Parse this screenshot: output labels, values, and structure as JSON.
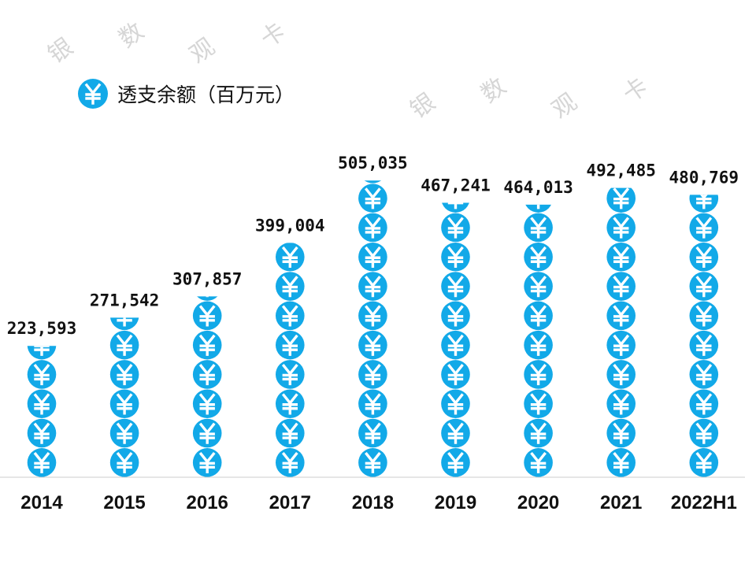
{
  "chart_data": {
    "type": "pictogram-bar",
    "legend": {
      "label": "透支余额（百万元）",
      "icon": "yuan-coin-icon",
      "position": "top-left"
    },
    "unit_per_icon": 50000,
    "categories": [
      "2014",
      "2015",
      "2016",
      "2017",
      "2018",
      "2019",
      "2020",
      "2021",
      "2022H1"
    ],
    "values": [
      223593,
      271542,
      307857,
      399004,
      505035,
      467241,
      464013,
      492485,
      480769
    ],
    "value_labels": [
      "223,593",
      "271,542",
      "307,857",
      "399,004",
      "505,035",
      "467,241",
      "464,013",
      "492,485",
      "480,769"
    ],
    "color": "#12a9e8",
    "grid": false
  },
  "watermark": [
    "银",
    "数",
    "观",
    "卡"
  ]
}
